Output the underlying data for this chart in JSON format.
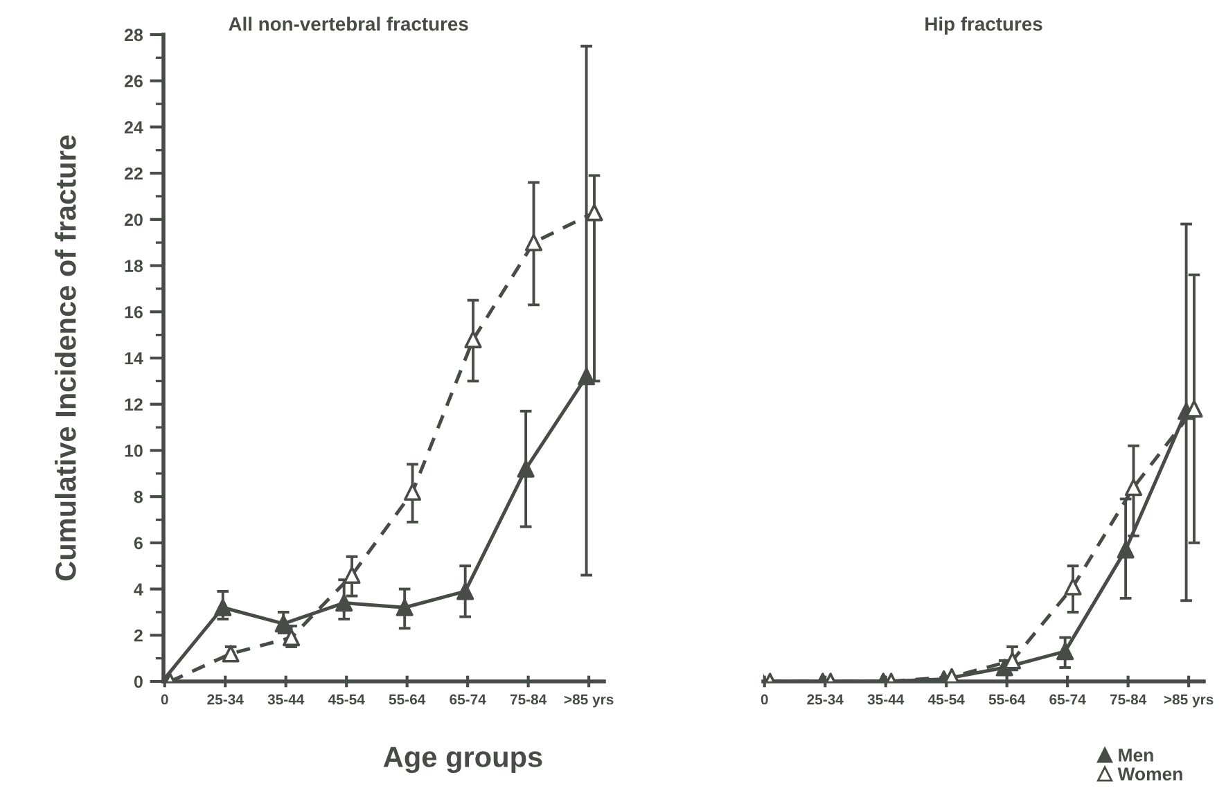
{
  "chart_data": [
    {
      "type": "line",
      "title": "All non-vertebral fractures",
      "xlabel": "Age groups",
      "ylabel": "Cumulative Incidence of fracture",
      "categories": [
        "0",
        "25-34",
        "35-44",
        "45-54",
        "55-64",
        "65-74",
        "75-84",
        ">85 yrs"
      ],
      "ylim": [
        0,
        28
      ],
      "yticks": [
        0,
        2,
        4,
        6,
        8,
        10,
        12,
        14,
        16,
        18,
        20,
        22,
        24,
        26,
        28
      ],
      "grid": false,
      "legend": false,
      "marker": "triangle",
      "series": [
        {
          "color": "#474c47",
          "line_style": "solid",
          "values": [
            0,
            3.2,
            2.5,
            3.4,
            3.2,
            3.9,
            9.2,
            13.2
          ],
          "errors": [
            null,
            [
              2.7,
              3.9
            ],
            [
              2.1,
              3.0
            ],
            [
              2.7,
              4.4
            ],
            [
              2.3,
              4.0
            ],
            [
              2.8,
              5.0
            ],
            [
              6.7,
              11.7
            ],
            [
              4.6,
              27.5
            ]
          ]
        },
        {
          "color": "#474c47",
          "line_style": "dashed",
          "values": [
            0,
            1.2,
            1.9,
            4.6,
            8.2,
            14.8,
            19.0,
            20.3
          ],
          "errors": [
            null,
            [
              0.9,
              1.5
            ],
            [
              1.5,
              2.4
            ],
            [
              3.7,
              5.4
            ],
            [
              6.9,
              9.4
            ],
            [
              13.0,
              16.5
            ],
            [
              16.3,
              21.6
            ],
            [
              13.0,
              21.9
            ]
          ]
        }
      ]
    },
    {
      "type": "line",
      "title": "Hip fractures",
      "categories": [
        "0",
        "25-34",
        "35-44",
        "45-54",
        "55-64",
        "65-74",
        "75-84",
        ">85 yrs"
      ],
      "ylim": [
        0,
        28
      ],
      "yticks": [
        0,
        2,
        4,
        6,
        8,
        10,
        12,
        14,
        16,
        18,
        20,
        22,
        24,
        26,
        28
      ],
      "tick_labels": "x",
      "grid": false,
      "legend": "bottom right",
      "marker": "triangle",
      "series": [
        {
          "name": "Men",
          "color": "#474c47",
          "line_style": "solid",
          "values": [
            0,
            0,
            0,
            0.1,
            0.6,
            1.3,
            5.7,
            11.7
          ],
          "errors": [
            null,
            null,
            null,
            null,
            [
              0.3,
              0.9
            ],
            [
              0.6,
              1.9
            ],
            [
              3.6,
              7.9
            ],
            [
              3.5,
              19.8
            ]
          ]
        },
        {
          "name": "Women",
          "color": "#474c47",
          "line_style": "dashed",
          "values": [
            0,
            0,
            0,
            0.2,
            0.9,
            4.1,
            8.4,
            11.8
          ],
          "errors": [
            null,
            null,
            null,
            null,
            [
              0.5,
              1.5
            ],
            [
              3.0,
              5.0
            ],
            [
              6.3,
              10.2
            ],
            [
              6.0,
              17.6
            ]
          ]
        }
      ]
    }
  ]
}
